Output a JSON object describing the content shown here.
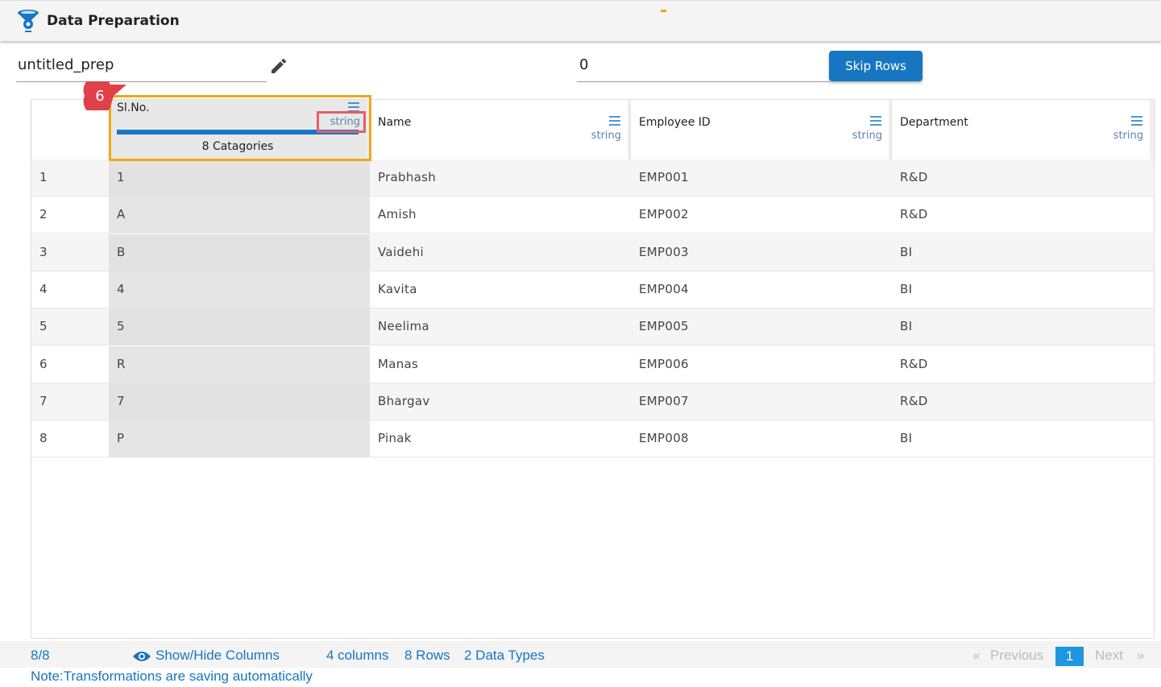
{
  "header": {
    "title": "Data Preparation",
    "logo_icon": "data-prep-logo-icon"
  },
  "prep_name": {
    "value": "untitled_prep",
    "edit_icon": "pencil-icon"
  },
  "skip": {
    "value": "0",
    "button_label": "Skip Rows"
  },
  "annotation": {
    "step": "6"
  },
  "columns": [
    {
      "name": "Sl.No.",
      "type": "string",
      "categories": "8 Catagories",
      "selected": true
    },
    {
      "name": "Name",
      "type": "string"
    },
    {
      "name": "Employee ID",
      "type": "string"
    },
    {
      "name": "Department",
      "type": "string"
    }
  ],
  "rows": [
    {
      "idx": "1",
      "c": [
        "1",
        "Prabhash",
        "EMP001",
        "R&D"
      ]
    },
    {
      "idx": "2",
      "c": [
        "A",
        "Amish",
        "EMP002",
        "R&D"
      ]
    },
    {
      "idx": "3",
      "c": [
        "B",
        "Vaidehi",
        "EMP003",
        "BI"
      ]
    },
    {
      "idx": "4",
      "c": [
        "4",
        "Kavita",
        "EMP004",
        "BI"
      ]
    },
    {
      "idx": "5",
      "c": [
        "5",
        "Neelima",
        "EMP005",
        "BI"
      ]
    },
    {
      "idx": "6",
      "c": [
        "R",
        "Manas",
        "EMP006",
        "R&D"
      ]
    },
    {
      "idx": "7",
      "c": [
        "7",
        "Bhargav",
        "EMP007",
        "R&D"
      ]
    },
    {
      "idx": "8",
      "c": [
        "P",
        "Pinak",
        "EMP008",
        "BI"
      ]
    }
  ],
  "footer": {
    "count": "8/8",
    "show_hide": "Show/Hide Columns",
    "columns": "4 columns",
    "rows": "8 Rows",
    "types": "2 Data Types",
    "prev_arrow": "«",
    "previous": "Previous",
    "page": "1",
    "next": "Next",
    "next_arrow": "»",
    "note": "Note:Transformations are saving automatically"
  },
  "colors": {
    "accent": "#1776c1",
    "highlight": "#f0a818",
    "annotation_red": "#e0404a"
  }
}
